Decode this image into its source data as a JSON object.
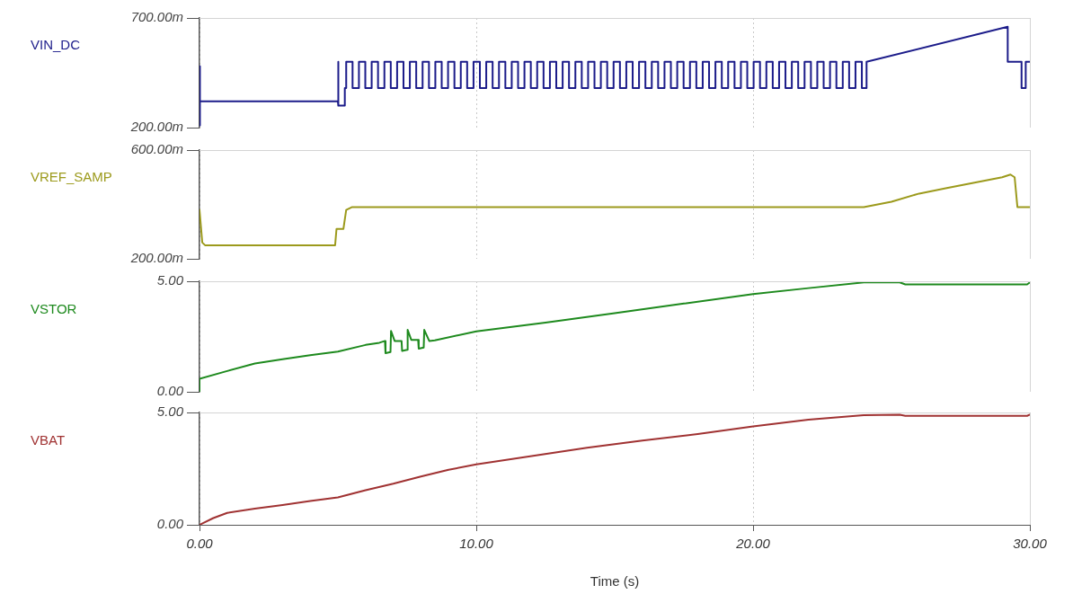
{
  "chart_data": [
    {
      "type": "line",
      "xlim": [
        0,
        30
      ],
      "xticks": [
        0,
        10,
        20,
        30
      ],
      "ylim": [
        200,
        700
      ],
      "yticks": [
        {
          "value": 200,
          "label": "200.00m"
        },
        {
          "value": 700,
          "label": "700.00m"
        }
      ],
      "grid": "x",
      "tick_labels": "y",
      "legend": false,
      "series": [
        {
          "name": "VIN_DC",
          "color": "#1c1c8a",
          "x": [
            0,
            0,
            0.03,
            5.0,
            5.0,
            5.03,
            5.25,
            5.25,
            5.3,
            5.3,
            5.53,
            5.53,
            5.76,
            5.76,
            5.99,
            5.99,
            6.22,
            6.22,
            6.45,
            6.45,
            6.68,
            6.68,
            6.91,
            6.91,
            7.14,
            7.14,
            7.37,
            7.37,
            7.6,
            7.6,
            7.83,
            7.83,
            8.06,
            8.06,
            8.29,
            8.29,
            8.52,
            8.52,
            8.75,
            8.75,
            8.98,
            8.98,
            9.21,
            9.21,
            9.44,
            9.44,
            9.67,
            9.67,
            9.9,
            9.9,
            10.13,
            10.13,
            10.36,
            10.36,
            10.59,
            10.59,
            10.82,
            10.82,
            11.05,
            11.05,
            11.28,
            11.28,
            11.51,
            11.51,
            11.74,
            11.74,
            11.97,
            11.97,
            12.2,
            12.2,
            12.43,
            12.43,
            12.66,
            12.66,
            12.89,
            12.89,
            13.12,
            13.12,
            13.35,
            13.35,
            13.58,
            13.58,
            13.81,
            13.81,
            14.04,
            14.04,
            14.27,
            14.27,
            14.5,
            14.5,
            14.73,
            14.73,
            14.96,
            14.96,
            15.19,
            15.19,
            15.42,
            15.42,
            15.65,
            15.65,
            15.88,
            15.88,
            16.11,
            16.11,
            16.34,
            16.34,
            16.57,
            16.57,
            16.8,
            16.8,
            17.03,
            17.03,
            17.26,
            17.26,
            17.49,
            17.49,
            17.72,
            17.72,
            17.95,
            17.95,
            18.18,
            18.18,
            18.41,
            18.41,
            18.64,
            18.64,
            18.87,
            18.87,
            19.1,
            19.1,
            19.33,
            19.33,
            19.56,
            19.56,
            19.79,
            19.79,
            20.02,
            20.02,
            20.25,
            20.25,
            20.48,
            20.48,
            20.71,
            20.71,
            20.94,
            20.94,
            21.17,
            21.17,
            21.4,
            21.4,
            21.63,
            21.63,
            21.86,
            21.86,
            22.09,
            22.09,
            22.32,
            22.32,
            22.55,
            22.55,
            22.78,
            22.78,
            23.01,
            23.01,
            23.24,
            23.24,
            23.47,
            23.47,
            23.7,
            23.7,
            23.93,
            23.93,
            24.1,
            24.1,
            29.2,
            29.2,
            29.7,
            29.7,
            29.85,
            29.85,
            30
          ],
          "values": [
            210,
            480,
            320,
            320,
            500,
            300,
            300,
            380,
            380,
            500,
            500,
            380,
            380,
            500,
            500,
            380,
            380,
            500,
            500,
            380,
            380,
            500,
            500,
            380,
            380,
            500,
            500,
            380,
            380,
            500,
            500,
            380,
            380,
            500,
            500,
            380,
            380,
            500,
            500,
            380,
            380,
            500,
            500,
            380,
            380,
            500,
            500,
            380,
            380,
            500,
            500,
            380,
            380,
            500,
            500,
            380,
            380,
            500,
            500,
            380,
            380,
            500,
            500,
            380,
            380,
            500,
            500,
            380,
            380,
            500,
            500,
            380,
            380,
            500,
            500,
            380,
            380,
            500,
            500,
            380,
            380,
            500,
            500,
            380,
            380,
            500,
            500,
            380,
            380,
            500,
            500,
            380,
            380,
            500,
            500,
            380,
            380,
            500,
            500,
            380,
            380,
            500,
            500,
            380,
            380,
            500,
            500,
            380,
            380,
            500,
            500,
            380,
            380,
            500,
            500,
            380,
            380,
            500,
            500,
            380,
            380,
            500,
            500,
            380,
            380,
            500,
            500,
            380,
            380,
            500,
            500,
            380,
            380,
            500,
            500,
            380,
            380,
            500,
            500,
            380,
            380,
            500,
            500,
            380,
            380,
            500,
            500,
            380,
            380,
            500,
            500,
            380,
            380,
            500,
            500,
            380,
            380,
            500,
            500,
            380,
            380,
            500,
            500,
            380,
            380,
            500,
            500,
            380,
            380,
            500,
            500,
            380,
            380,
            500,
            660,
            500,
            500,
            380,
            380,
            500,
            500
          ]
        }
      ]
    },
    {
      "type": "line",
      "xlim": [
        0,
        30
      ],
      "xticks": [
        0,
        10,
        20,
        30
      ],
      "ylim": [
        200,
        600
      ],
      "yticks": [
        {
          "value": 200,
          "label": "200.00m"
        },
        {
          "value": 600,
          "label": "600.00m"
        }
      ],
      "grid": "x",
      "tick_labels": "y",
      "legend": false,
      "series": [
        {
          "name": "VREF_SAMP",
          "color": "#9c9a1c",
          "x": [
            0,
            0.1,
            0.2,
            4.9,
            4.95,
            5.2,
            5.3,
            5.5,
            10,
            15,
            20,
            24,
            25,
            26,
            27,
            28,
            29,
            29.3,
            29.45,
            29.55,
            30
          ],
          "values": [
            380,
            260,
            250,
            250,
            310,
            310,
            380,
            390,
            390,
            390,
            390,
            390,
            410,
            440,
            460,
            480,
            500,
            510,
            500,
            390,
            390
          ]
        }
      ]
    },
    {
      "type": "line",
      "xlim": [
        0,
        30
      ],
      "xticks": [
        0,
        10,
        20,
        30
      ],
      "ylim": [
        0,
        5
      ],
      "yticks": [
        {
          "value": 0,
          "label": "0.00"
        },
        {
          "value": 5,
          "label": "5.00"
        }
      ],
      "grid": "x",
      "tick_labels": "y",
      "legend": false,
      "series": [
        {
          "name": "VSTOR",
          "color": "#1e8a1e",
          "x": [
            0,
            0,
            1,
            2,
            3,
            4,
            5,
            6,
            6.5,
            6.7,
            6.72,
            6.9,
            6.92,
            7.05,
            7.3,
            7.32,
            7.5,
            7.52,
            7.65,
            7.9,
            7.92,
            8.1,
            8.12,
            8.3,
            8.5,
            10,
            12.5,
            15,
            17.5,
            20,
            22,
            24,
            25.3,
            25.5,
            29.9,
            30
          ],
          "values": [
            0,
            0.59,
            0.94,
            1.28,
            1.47,
            1.66,
            1.82,
            2.12,
            2.22,
            2.3,
            1.75,
            1.8,
            2.75,
            2.3,
            2.3,
            1.85,
            1.9,
            2.8,
            2.35,
            2.35,
            1.95,
            2.0,
            2.8,
            2.3,
            2.33,
            2.73,
            3.13,
            3.56,
            3.99,
            4.42,
            4.69,
            4.95,
            4.95,
            4.86,
            4.86,
            4.95
          ]
        }
      ]
    },
    {
      "type": "line",
      "xlim": [
        0,
        30
      ],
      "xticks": [
        {
          "value": 0,
          "label": "0.00"
        },
        {
          "value": 10,
          "label": "10.00"
        },
        {
          "value": 20,
          "label": "20.00"
        },
        {
          "value": 30,
          "label": "30.00"
        }
      ],
      "ylim": [
        0,
        5
      ],
      "yticks": [
        {
          "value": 0,
          "label": "0.00"
        },
        {
          "value": 5,
          "label": "5.00"
        }
      ],
      "grid": "x",
      "xlabel": "Time (s)",
      "legend": false,
      "series": [
        {
          "name": "VBAT",
          "color": "#a03232",
          "x": [
            0,
            0.5,
            1,
            2,
            3,
            4,
            5,
            6,
            7,
            8,
            9,
            10,
            12,
            14,
            16,
            18,
            20,
            22,
            24,
            25.3,
            25.5,
            29.9,
            30
          ],
          "values": [
            0,
            0.3,
            0.53,
            0.72,
            0.88,
            1.06,
            1.22,
            1.54,
            1.83,
            2.15,
            2.45,
            2.69,
            3.06,
            3.43,
            3.75,
            4.04,
            4.38,
            4.68,
            4.88,
            4.9,
            4.85,
            4.85,
            4.9
          ]
        }
      ]
    }
  ]
}
